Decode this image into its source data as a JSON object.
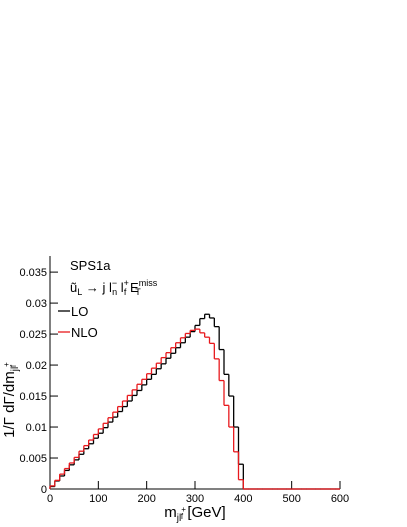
{
  "chart_data": {
    "type": "histogram",
    "annotation_title": "SPS1a",
    "annotation_parts": [
      "ũ",
      "L",
      " → j l",
      "−",
      "n",
      " l",
      "+",
      "f",
      " E",
      "miss",
      "T"
    ],
    "ylabel_parts": [
      "1/Γ dΓ/dm",
      "jl",
      "+",
      "f"
    ],
    "xlabel_parts": [
      "m",
      "jl",
      "+",
      "f",
      " [GeV]"
    ],
    "bins": [
      0,
      10,
      20,
      30,
      40,
      50,
      60,
      70,
      80,
      90,
      100,
      110,
      120,
      130,
      140,
      150,
      160,
      170,
      180,
      190,
      200,
      210,
      220,
      230,
      240,
      250,
      260,
      270,
      280,
      290,
      300,
      310,
      320,
      330,
      340,
      350,
      360,
      370,
      380,
      390,
      400,
      410,
      420,
      430,
      440,
      450,
      460,
      470,
      480,
      490,
      500,
      510,
      520,
      530,
      540,
      550,
      560,
      570,
      580,
      590,
      600
    ],
    "series": [
      {
        "name": "LO",
        "color": "#000000",
        "values": [
          0.0004,
          0.0013,
          0.0021,
          0.003,
          0.0039,
          0.0047,
          0.0056,
          0.0065,
          0.0073,
          0.0082,
          0.009,
          0.0099,
          0.0108,
          0.0116,
          0.0125,
          0.0133,
          0.0142,
          0.0151,
          0.0159,
          0.0168,
          0.0177,
          0.0185,
          0.0194,
          0.0202,
          0.0211,
          0.0219,
          0.0228,
          0.0236,
          0.0245,
          0.0254,
          0.0264,
          0.0275,
          0.0282,
          0.0276,
          0.0262,
          0.0225,
          0.0185,
          0.015,
          0.01,
          0.004,
          0,
          0,
          0,
          0,
          0,
          0,
          0,
          0,
          0,
          0,
          0,
          0,
          0,
          0,
          0,
          0,
          0,
          0,
          0,
          0
        ]
      },
      {
        "name": "NLO",
        "color": "#e8191d",
        "values": [
          0.0005,
          0.0014,
          0.0024,
          0.0033,
          0.0042,
          0.0051,
          0.0061,
          0.007,
          0.0079,
          0.0088,
          0.0097,
          0.0106,
          0.0115,
          0.0124,
          0.0133,
          0.0142,
          0.0151,
          0.016,
          0.0169,
          0.0177,
          0.0186,
          0.0195,
          0.0203,
          0.0212,
          0.022,
          0.0228,
          0.0236,
          0.0244,
          0.0251,
          0.0256,
          0.0258,
          0.0252,
          0.0245,
          0.0235,
          0.021,
          0.0175,
          0.0135,
          0.01,
          0.006,
          0.0015,
          0,
          0,
          0,
          0,
          0,
          0,
          0,
          0,
          0,
          0,
          0,
          0,
          0,
          0,
          0,
          0,
          0,
          0,
          0,
          0
        ]
      }
    ],
    "xlim": [
      0,
      600
    ],
    "xticks": [
      0,
      100,
      200,
      300,
      400,
      500,
      600
    ],
    "ylim": [
      0,
      0.0376
    ],
    "yticks": [
      0,
      0.005,
      0.01,
      0.015,
      0.02,
      0.025,
      0.03,
      0.035
    ]
  }
}
